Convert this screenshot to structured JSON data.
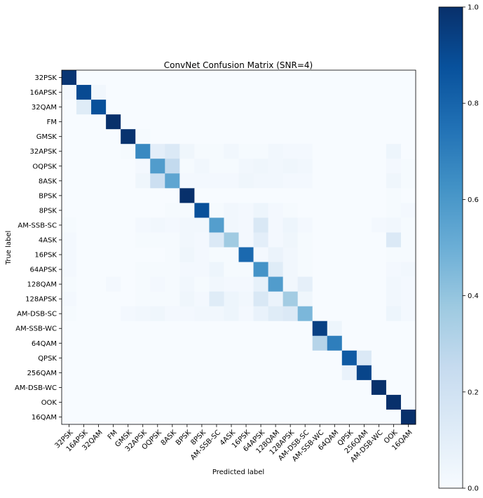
{
  "chart_data": {
    "type": "heatmap",
    "title": "ConvNet Confusion Matrix (SNR=4)",
    "xlabel": "Predicted label",
    "ylabel": "True label",
    "labels": [
      "32PSK",
      "16APSK",
      "32QAM",
      "FM",
      "GMSK",
      "32APSK",
      "OQPSK",
      "8ASK",
      "BPSK",
      "8PSK",
      "AM-SSB-SC",
      "4ASK",
      "16PSK",
      "64APSK",
      "128QAM",
      "128APSK",
      "AM-DSB-SC",
      "AM-SSB-WC",
      "64QAM",
      "QPSK",
      "256QAM",
      "AM-DSB-WC",
      "OOK",
      "16QAM"
    ],
    "matrix": [
      [
        0.98,
        0,
        0,
        0,
        0,
        0,
        0,
        0,
        0,
        0,
        0,
        0,
        0,
        0,
        0,
        0,
        0,
        0,
        0,
        0,
        0,
        0,
        0,
        0
      ],
      [
        0.02,
        0.9,
        0.03,
        0,
        0,
        0,
        0,
        0,
        0,
        0,
        0,
        0,
        0,
        0,
        0,
        0,
        0,
        0,
        0,
        0,
        0,
        0,
        0,
        0
      ],
      [
        0,
        0.12,
        0.88,
        0,
        0,
        0,
        0,
        0,
        0,
        0,
        0,
        0,
        0,
        0,
        0,
        0,
        0,
        0,
        0,
        0,
        0,
        0,
        0,
        0
      ],
      [
        0,
        0,
        0,
        1.0,
        0,
        0,
        0,
        0,
        0,
        0,
        0,
        0,
        0,
        0,
        0,
        0,
        0,
        0,
        0,
        0,
        0,
        0,
        0,
        0
      ],
      [
        0,
        0,
        0,
        0,
        0.99,
        0.01,
        0,
        0,
        0,
        0,
        0,
        0,
        0,
        0,
        0,
        0,
        0,
        0,
        0,
        0,
        0,
        0,
        0,
        0
      ],
      [
        0,
        0,
        0,
        0,
        0.01,
        0.66,
        0.1,
        0.14,
        0.04,
        0.01,
        0.01,
        0.03,
        0.01,
        0.01,
        0.03,
        0.02,
        0.02,
        0,
        0,
        0,
        0,
        0,
        0.05,
        0
      ],
      [
        0,
        0,
        0,
        0,
        0,
        0.02,
        0.58,
        0.26,
        0.01,
        0.03,
        0.01,
        0.01,
        0.03,
        0.04,
        0.03,
        0.04,
        0.03,
        0,
        0,
        0,
        0,
        0,
        0.02,
        0.01
      ],
      [
        0,
        0,
        0,
        0,
        0,
        0.04,
        0.22,
        0.54,
        0.02,
        0.02,
        0.02,
        0.02,
        0.04,
        0.03,
        0.03,
        0.02,
        0.02,
        0,
        0,
        0,
        0,
        0,
        0.04,
        0.01
      ],
      [
        0,
        0,
        0,
        0,
        0,
        0,
        0,
        0,
        1.0,
        0,
        0,
        0,
        0,
        0,
        0,
        0,
        0,
        0,
        0,
        0,
        0,
        0,
        0.01,
        0
      ],
      [
        0,
        0,
        0,
        0,
        0,
        0,
        0,
        0.01,
        0.01,
        0.88,
        0.01,
        0.03,
        0.02,
        0.05,
        0.02,
        0.01,
        0,
        0,
        0,
        0,
        0,
        0,
        0.01,
        0.02
      ],
      [
        0.01,
        0,
        0,
        0,
        0,
        0.02,
        0.03,
        0.02,
        0.03,
        0.03,
        0.57,
        0.03,
        0.02,
        0.15,
        0.02,
        0.05,
        0.02,
        0,
        0,
        0,
        0,
        0.02,
        0.03,
        0.01
      ],
      [
        0.02,
        0,
        0,
        0,
        0,
        0.01,
        0.01,
        0.01,
        0.03,
        0.02,
        0.14,
        0.37,
        0.02,
        0.1,
        0.02,
        0.04,
        0.01,
        0,
        0,
        0,
        0,
        0,
        0.14,
        0.01
      ],
      [
        0.02,
        0,
        0,
        0,
        0,
        0,
        0,
        0.01,
        0.04,
        0.02,
        0.01,
        0.01,
        0.78,
        0.02,
        0.06,
        0.03,
        0.01,
        0,
        0,
        0,
        0,
        0,
        0.01,
        0.01
      ],
      [
        0.02,
        0,
        0,
        0,
        0,
        0.01,
        0.01,
        0.01,
        0.02,
        0.02,
        0.05,
        0.01,
        0.01,
        0.62,
        0.12,
        0.03,
        0.01,
        0,
        0,
        0,
        0,
        0,
        0.02,
        0.03
      ],
      [
        0.01,
        0,
        0,
        0.02,
        0,
        0.01,
        0.02,
        0.01,
        0.03,
        0.01,
        0.03,
        0.02,
        0.02,
        0.08,
        0.58,
        0.03,
        0.09,
        0,
        0,
        0,
        0,
        0,
        0.03,
        0.02
      ],
      [
        0.02,
        0,
        0,
        0,
        0,
        0.01,
        0.01,
        0.01,
        0.04,
        0.02,
        0.12,
        0.05,
        0.03,
        0.15,
        0.06,
        0.36,
        0.04,
        0,
        0,
        0,
        0,
        0,
        0.03,
        0.02
      ],
      [
        0.01,
        0,
        0,
        0,
        0.02,
        0.03,
        0.04,
        0.02,
        0.02,
        0.03,
        0.03,
        0.05,
        0.02,
        0.07,
        0.12,
        0.14,
        0.46,
        0,
        0,
        0,
        0,
        0,
        0.05,
        0.02
      ],
      [
        0,
        0,
        0,
        0,
        0,
        0,
        0,
        0,
        0,
        0,
        0,
        0,
        0,
        0,
        0,
        0,
        0,
        0.94,
        0.05,
        0,
        0,
        0,
        0,
        0
      ],
      [
        0,
        0,
        0,
        0,
        0,
        0,
        0,
        0,
        0,
        0,
        0,
        0,
        0,
        0,
        0,
        0,
        0,
        0.3,
        0.7,
        0,
        0,
        0,
        0,
        0
      ],
      [
        0,
        0,
        0,
        0,
        0,
        0,
        0,
        0,
        0,
        0,
        0,
        0,
        0,
        0,
        0,
        0,
        0,
        0,
        0,
        0.84,
        0.14,
        0,
        0,
        0
      ],
      [
        0,
        0,
        0,
        0,
        0,
        0,
        0,
        0,
        0,
        0,
        0,
        0,
        0,
        0,
        0,
        0,
        0,
        0,
        0,
        0.07,
        0.92,
        0,
        0,
        0
      ],
      [
        0,
        0,
        0,
        0,
        0,
        0,
        0,
        0,
        0,
        0,
        0,
        0,
        0,
        0,
        0,
        0,
        0,
        0,
        0,
        0,
        0,
        1.0,
        0,
        0
      ],
      [
        0,
        0,
        0,
        0,
        0,
        0,
        0,
        0,
        0,
        0,
        0,
        0,
        0,
        0,
        0,
        0,
        0,
        0,
        0,
        0,
        0,
        0,
        1.0,
        0
      ],
      [
        0,
        0,
        0,
        0,
        0,
        0,
        0,
        0,
        0,
        0,
        0,
        0,
        0,
        0,
        0,
        0,
        0,
        0,
        0,
        0,
        0,
        0,
        0,
        1.0
      ]
    ],
    "colorbar": {
      "ticks": [
        "0.0",
        "0.2",
        "0.4",
        "0.6",
        "0.8",
        "1.0"
      ],
      "min": 0,
      "max": 1
    },
    "colormap": "Blues",
    "grid": false
  }
}
